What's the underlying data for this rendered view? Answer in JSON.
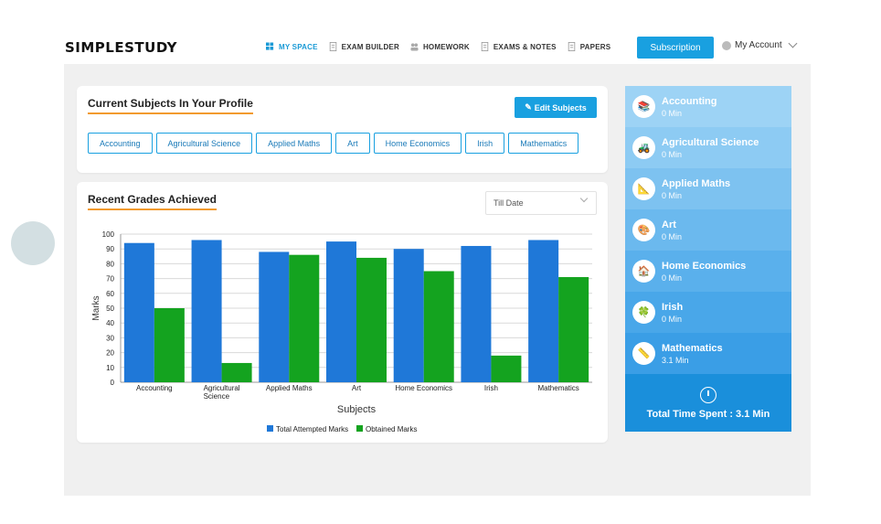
{
  "brand": {
    "logo_text": "SIMPLESTUDY"
  },
  "nav": {
    "items": [
      {
        "label": "MY SPACE",
        "icon": "dashboard-icon",
        "active": true
      },
      {
        "label": "EXAM BUILDER",
        "icon": "document-icon",
        "active": false
      },
      {
        "label": "HOMEWORK",
        "icon": "users-icon",
        "active": false
      },
      {
        "label": "EXAMS & NOTES",
        "icon": "document-icon",
        "active": false
      },
      {
        "label": "PAPERS",
        "icon": "document-icon",
        "active": false
      }
    ]
  },
  "header": {
    "subscription_label": "Subscription",
    "account_label": "My Account"
  },
  "profile": {
    "title": "Current Subjects In Your Profile",
    "edit_label": "Edit Subjects",
    "subjects": [
      "Accounting",
      "Agricultural Science",
      "Applied Maths",
      "Art",
      "Home Economics",
      "Irish",
      "Mathematics"
    ]
  },
  "grades": {
    "title": "Recent Grades Achieved",
    "filter_value": "Till Date"
  },
  "chart_data": {
    "type": "bar",
    "categories": [
      "Accounting",
      "Agricultural Science",
      "Applied Maths",
      "Art",
      "Home Economics",
      "Irish",
      "Mathematics"
    ],
    "category_lines": [
      [
        "Accounting"
      ],
      [
        "Agricultural",
        "Science"
      ],
      [
        "Applied Maths"
      ],
      [
        "Art"
      ],
      [
        "Home Economics"
      ],
      [
        "Irish"
      ],
      [
        "Mathematics"
      ]
    ],
    "series": [
      {
        "name": "Total Attempted Marks",
        "color": "#1f78d8",
        "values": [
          94,
          96,
          88,
          95,
          90,
          92,
          96
        ]
      },
      {
        "name": "Obtained Marks",
        "color": "#14a31f",
        "values": [
          50,
          13,
          86,
          84,
          75,
          18,
          71
        ]
      }
    ],
    "xlabel": "Subjects",
    "ylabel": "Marks",
    "ylim": [
      0,
      100
    ],
    "yticks": [
      0,
      10,
      20,
      30,
      40,
      50,
      60,
      70,
      80,
      90,
      100
    ],
    "grid": true,
    "legend": "bottom"
  },
  "sidebar": {
    "items": [
      {
        "name": "Accounting",
        "time": "0 Min",
        "color": "#9dd3f5",
        "icon": "books-icon",
        "glyph": "📚"
      },
      {
        "name": "Agricultural Science",
        "time": "0 Min",
        "color": "#8dcbf3",
        "icon": "tractor-icon",
        "glyph": "🚜"
      },
      {
        "name": "Applied Maths",
        "time": "0 Min",
        "color": "#7dc2f0",
        "icon": "ruler-icon",
        "glyph": "📐"
      },
      {
        "name": "Art",
        "time": "0 Min",
        "color": "#6bb9ee",
        "icon": "palette-icon",
        "glyph": "🎨"
      },
      {
        "name": "Home Economics",
        "time": "0 Min",
        "color": "#5ab0ec",
        "icon": "house-icon",
        "glyph": "🏠"
      },
      {
        "name": "Irish",
        "time": "0 Min",
        "color": "#49a7e9",
        "icon": "leprechaun-icon",
        "glyph": "🍀"
      },
      {
        "name": "Mathematics",
        "time": "3.1 Min",
        "color": "#3a9ee6",
        "icon": "compass-icon",
        "glyph": "📏"
      }
    ],
    "total_label": "Total Time Spent : 3.1 Min",
    "total_icon": "stopwatch-icon"
  }
}
